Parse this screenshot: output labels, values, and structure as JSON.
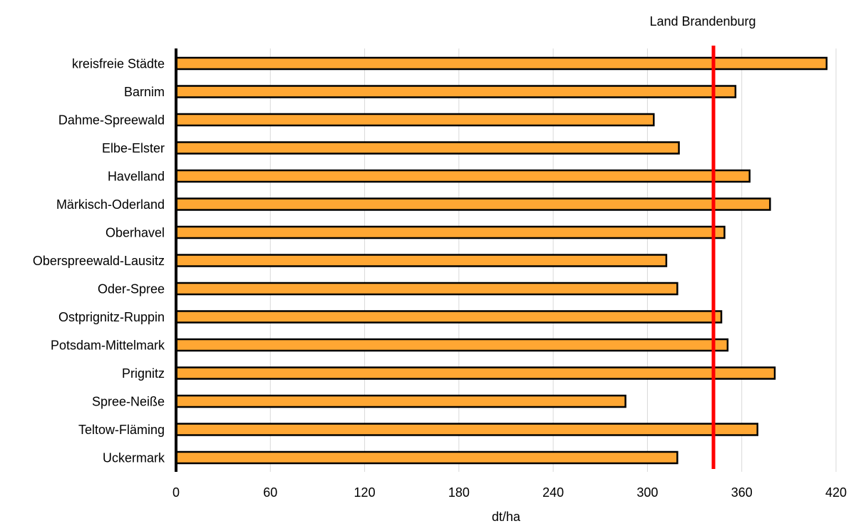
{
  "chart_data": {
    "type": "bar",
    "orientation": "horizontal",
    "categories": [
      "kreisfreie Städte",
      "Barnim",
      "Dahme-Spreewald",
      "Elbe-Elster",
      "Havelland",
      "Märkisch-Oderland",
      "Oberhavel",
      "Oberspreewald-Lausitz",
      "Oder-Spree",
      "Ostprignitz-Ruppin",
      "Potsdam-Mittelmark",
      "Prignitz",
      "Spree-Neiße",
      "Teltow-Fläming",
      "Uckermark"
    ],
    "values": [
      414,
      356,
      304,
      320,
      365,
      378,
      349,
      312,
      319,
      347,
      351,
      381,
      286,
      370,
      319
    ],
    "xlabel": "dt/ha",
    "ylabel": "",
    "xlim": [
      0,
      420
    ],
    "xticks": [
      0,
      60,
      120,
      180,
      240,
      300,
      360,
      420
    ],
    "grid": "vertical",
    "reference_line": {
      "label": "Land Brandenburg",
      "value": 342,
      "color": "#ff0000"
    },
    "colors": {
      "bar": "#ffa733",
      "bar_stroke": "#000000",
      "grid": "#d9d9d9"
    }
  }
}
